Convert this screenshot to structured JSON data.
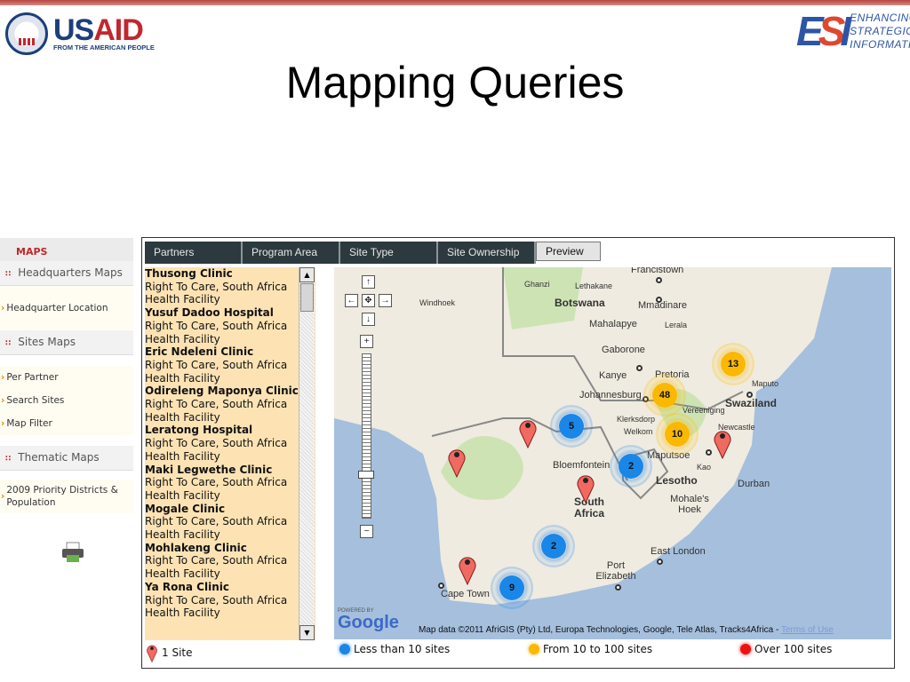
{
  "header": {
    "usaid_logo": {
      "word_us": "US",
      "word_aid": "AID",
      "tagline": "FROM THE AMERICAN PEOPLE"
    },
    "esi_logo": {
      "mark_e": "E",
      "mark_s": "S",
      "mark_i": "I",
      "lines": [
        "ENHANCING",
        "STRATEGIC",
        "INFORMATION"
      ]
    },
    "title": "Mapping Queries"
  },
  "sidebar": {
    "header": "MAPS",
    "groups": [
      {
        "label": "Headquarters Maps",
        "links": [
          "Headquarter Location"
        ]
      },
      {
        "label": "Sites Maps",
        "links": [
          "Per Partner",
          "Search Sites",
          "Map Filter"
        ]
      },
      {
        "label": "Thematic Maps",
        "links": [
          "2009 Priority Districts & Population"
        ]
      }
    ],
    "print_icon": "printer-icon"
  },
  "tabs": [
    "Partners",
    "Program Area",
    "Site Type",
    "Site Ownership",
    "Preview"
  ],
  "sites": [
    {
      "name": "Thusong Clinic",
      "partner": "Right To Care, South Africa",
      "type": "Health Facility"
    },
    {
      "name": "Yusuf Dadoo Hospital",
      "partner": "Right To Care, South Africa",
      "type": "Health Facility"
    },
    {
      "name": "Eric Ndeleni Clinic",
      "partner": "Right To Care, South Africa",
      "type": "Health Facility"
    },
    {
      "name": "Odireleng Maponya Clinic",
      "partner": "Right To Care, South Africa",
      "type": "Health Facility"
    },
    {
      "name": "Leratong Hospital",
      "partner": "Right To Care, South Africa",
      "type": "Health Facility"
    },
    {
      "name": "Maki Legwethe Clinic",
      "partner": "Right To Care, South Africa",
      "type": "Health Facility"
    },
    {
      "name": "Mogale Clinic",
      "partner": "Right To Care, South Africa",
      "type": "Health Facility"
    },
    {
      "name": "Mohlakeng Clinic",
      "partner": "Right To Care, South Africa",
      "type": "Health Facility"
    },
    {
      "name": "Ya Rona Clinic",
      "partner": "Right To Care, South Africa",
      "type": "Health Facility"
    }
  ],
  "map": {
    "place_labels": {
      "francistown": "Francistown",
      "ghanzi": "Ghanzi",
      "lethakane": "Lethakane",
      "windhoek": "Windhoek",
      "botswana": "Botswana",
      "mmadinare": "Mmadinare",
      "mahalapye": "Mahalapye",
      "lerala": "Lerala",
      "gaborone": "Gaborone",
      "kanye": "Kanye",
      "pretoria": "Pretoria",
      "maputo": "Maputo",
      "johannesburg": "Johannesburg",
      "vereeniging": "Vereeniging",
      "swaziland": "Swaziland",
      "klerksdorp": "Klerksdorp",
      "welkom": "Welkom",
      "newcastle": "Newcastle",
      "maputsoe": "Maputsoe",
      "kao": "Kao",
      "bloemfontein": "Bloemfontein",
      "lesotho": "Lesotho",
      "durban": "Durban",
      "south_africa": "South Africa",
      "mohales_hoek": "Mohale's Hoek",
      "east_london": "East London",
      "port_elizabeth": "Port Elizabeth",
      "cape_town": "Cape Town"
    },
    "clusters": [
      {
        "count": "13",
        "category": "From 10 to 100 sites"
      },
      {
        "count": "48",
        "category": "From 10 to 100 sites"
      },
      {
        "count": "10",
        "category": "From 10 to 100 sites"
      },
      {
        "count": "5",
        "category": "Less than 10 sites"
      },
      {
        "count": "2",
        "category": "Less than 10 sites"
      },
      {
        "count": "2",
        "category": "Less than 10 sites"
      },
      {
        "count": "9",
        "category": "Less than 10 sites"
      }
    ],
    "single_site_markers": 5,
    "powered_by": "POWERED BY",
    "google": "Google",
    "attribution": "Map data ©2011 AfriGIS (Pty) Ltd, Europa Technologies, Google, Tele Atlas, Tracks4Africa - ",
    "terms": "Terms of Use",
    "colors": {
      "ocean": "#a5bfdd",
      "land": "#efebe0",
      "blue": "#1a86e8",
      "yellow": "#fbb800",
      "red": "#ee1111",
      "pin": "#f06a62"
    }
  },
  "legend": [
    "1 Site",
    "Less than 10 sites",
    "From 10 to 100 sites",
    "Over 100 sites"
  ]
}
